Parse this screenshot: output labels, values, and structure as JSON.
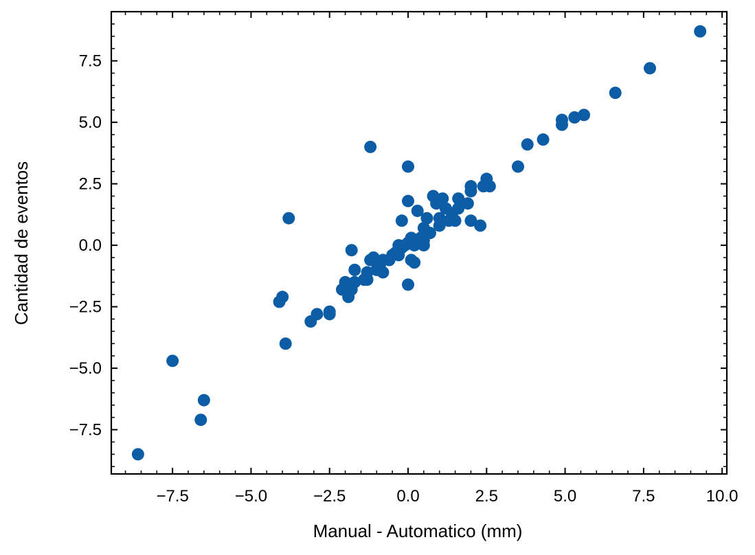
{
  "chart_data": {
    "type": "scatter",
    "title": "",
    "xlabel": "Manual - Automatico (mm)",
    "ylabel": "Cantidad de eventos",
    "xlim": [
      -9.45,
      10.15
    ],
    "ylim": [
      -9.3,
      9.5
    ],
    "xticks": [
      -7.5,
      -5.0,
      -2.5,
      0.0,
      2.5,
      5.0,
      7.5,
      10.0
    ],
    "yticks": [
      -7.5,
      -5.0,
      -2.5,
      0.0,
      2.5,
      5.0,
      7.5
    ],
    "xtick_labels": [
      "−7.5",
      "−5.0",
      "−2.5",
      "0.0",
      "2.5",
      "5.0",
      "7.5",
      "10.0"
    ],
    "ytick_labels": [
      "−7.5",
      "−5.0",
      "−2.5",
      "0.0",
      "2.5",
      "5.0",
      "7.5"
    ],
    "grid": false,
    "marker_color": "#0c5da5",
    "points": [
      [
        -8.6,
        -8.5
      ],
      [
        -7.5,
        -4.7
      ],
      [
        -6.6,
        -7.1
      ],
      [
        -6.5,
        -6.3
      ],
      [
        -4.1,
        -2.3
      ],
      [
        -4.0,
        -2.1
      ],
      [
        -3.9,
        -4.0
      ],
      [
        -3.8,
        1.1
      ],
      [
        -3.1,
        -3.1
      ],
      [
        -2.9,
        -2.8
      ],
      [
        -2.5,
        -2.7
      ],
      [
        -2.5,
        -2.8
      ],
      [
        -2.1,
        -1.8
      ],
      [
        -2.0,
        -1.5
      ],
      [
        -1.9,
        -2.1
      ],
      [
        -1.8,
        -1.8
      ],
      [
        -1.8,
        -0.2
      ],
      [
        -1.7,
        -1.5
      ],
      [
        -1.7,
        -1.0
      ],
      [
        -1.4,
        -1.4
      ],
      [
        -1.3,
        -1.4
      ],
      [
        -1.3,
        -1.1
      ],
      [
        -1.2,
        4.0
      ],
      [
        -1.2,
        -0.6
      ],
      [
        -1.1,
        -0.5
      ],
      [
        -1.0,
        -1.0
      ],
      [
        -0.9,
        -0.8
      ],
      [
        -0.8,
        -1.1
      ],
      [
        -0.8,
        -0.6
      ],
      [
        -0.6,
        -0.6
      ],
      [
        -0.5,
        -0.4
      ],
      [
        -0.4,
        -0.3
      ],
      [
        -0.3,
        -0.4
      ],
      [
        -0.3,
        0.0
      ],
      [
        -0.2,
        1.0
      ],
      [
        -0.2,
        -0.1
      ],
      [
        -0.1,
        0.0
      ],
      [
        0.0,
        3.2
      ],
      [
        0.0,
        1.8
      ],
      [
        0.0,
        -1.6
      ],
      [
        0.0,
        0.1
      ],
      [
        0.1,
        0.3
      ],
      [
        0.1,
        -0.6
      ],
      [
        0.2,
        0.0
      ],
      [
        0.2,
        -0.7
      ],
      [
        0.3,
        0.2
      ],
      [
        0.3,
        1.4
      ],
      [
        0.4,
        0.3
      ],
      [
        0.5,
        0.0
      ],
      [
        0.5,
        0.2
      ],
      [
        0.5,
        0.7
      ],
      [
        0.6,
        1.1
      ],
      [
        0.7,
        0.5
      ],
      [
        0.8,
        2.0
      ],
      [
        0.9,
        1.7
      ],
      [
        1.0,
        0.8
      ],
      [
        1.0,
        1.1
      ],
      [
        1.1,
        1.9
      ],
      [
        1.2,
        1.5
      ],
      [
        1.3,
        1.0
      ],
      [
        1.4,
        1.3
      ],
      [
        1.5,
        1.0
      ],
      [
        1.6,
        1.5
      ],
      [
        1.6,
        1.9
      ],
      [
        1.7,
        1.7
      ],
      [
        1.9,
        1.7
      ],
      [
        2.0,
        2.2
      ],
      [
        2.0,
        2.4
      ],
      [
        2.0,
        1.0
      ],
      [
        2.3,
        0.8
      ],
      [
        2.4,
        2.4
      ],
      [
        2.5,
        2.7
      ],
      [
        2.6,
        2.4
      ],
      [
        3.5,
        3.2
      ],
      [
        3.8,
        4.1
      ],
      [
        4.3,
        4.3
      ],
      [
        4.9,
        4.9
      ],
      [
        4.9,
        5.1
      ],
      [
        5.3,
        5.2
      ],
      [
        5.6,
        5.3
      ],
      [
        6.6,
        6.2
      ],
      [
        7.7,
        7.2
      ],
      [
        9.3,
        8.7
      ]
    ]
  }
}
